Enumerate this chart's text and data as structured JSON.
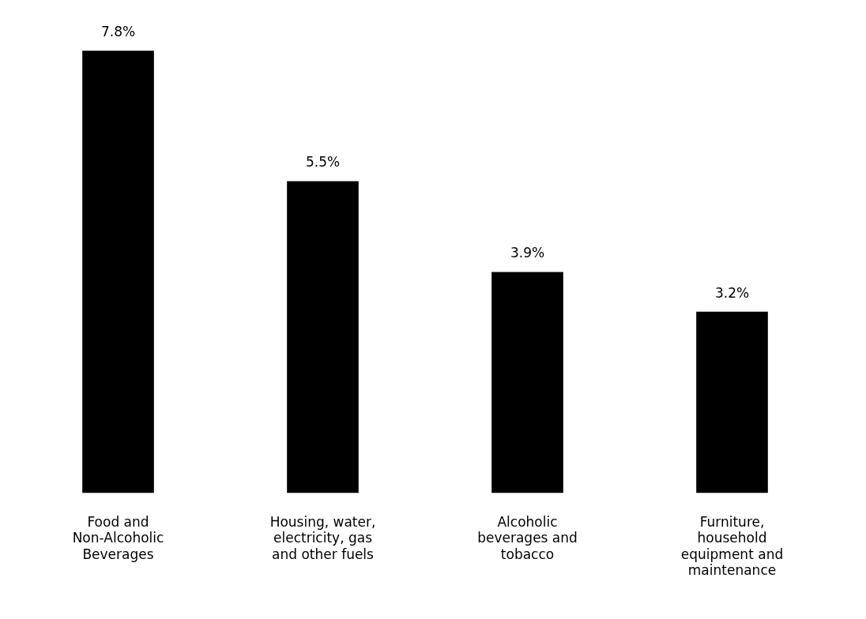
{
  "chart_data": {
    "type": "bar",
    "categories": [
      "Food and Non-Alcoholic Beverages",
      "Housing, water, electricity, gas and other fuels",
      "Alcoholic beverages and tobacco",
      "Furniture, household equipment and maintenance"
    ],
    "values": [
      7.8,
      5.5,
      3.9,
      3.2
    ],
    "value_labels": [
      "7.8%",
      "5.5%",
      "3.9%",
      "3.2%"
    ],
    "color": "#000000"
  }
}
